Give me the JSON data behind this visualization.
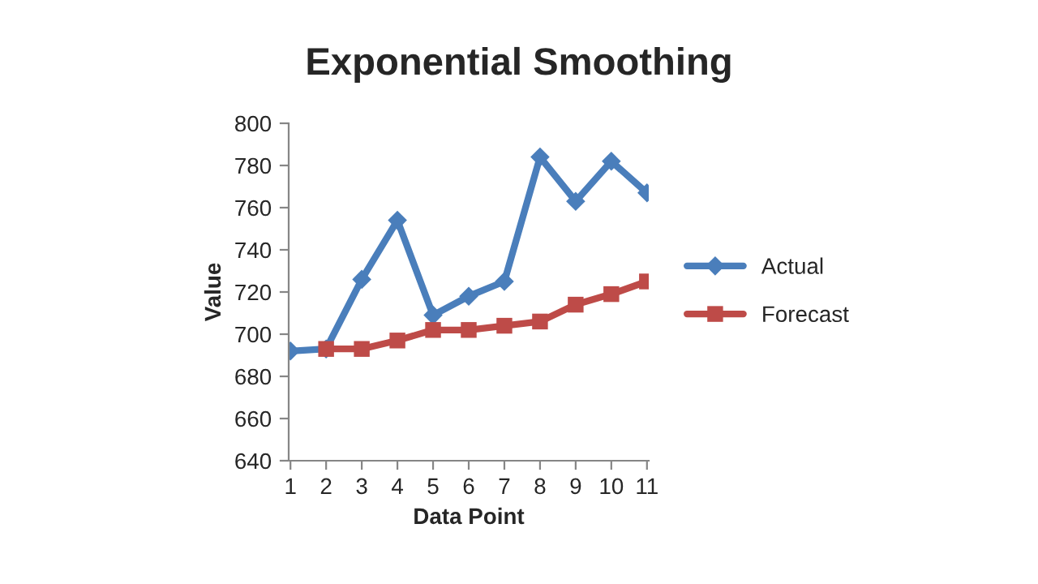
{
  "chart_data": {
    "type": "line",
    "title": "Exponential Smoothing",
    "xlabel": "Data Point",
    "ylabel": "Value",
    "categories": [
      "1",
      "2",
      "3",
      "4",
      "5",
      "6",
      "7",
      "8",
      "9",
      "10",
      "11"
    ],
    "series": [
      {
        "name": "Actual",
        "color": "#4a7ebb",
        "marker": "diamond",
        "values": [
          692,
          693,
          726,
          754,
          709,
          718,
          725,
          784,
          763,
          782,
          767
        ]
      },
      {
        "name": "Forecast",
        "color": "#be4b48",
        "marker": "square",
        "values": [
          null,
          693,
          693,
          697,
          702,
          702,
          704,
          706,
          714,
          719,
          725
        ]
      }
    ],
    "ylim": [
      640,
      800
    ],
    "yticks": [
      640,
      660,
      680,
      700,
      720,
      740,
      760,
      780,
      800
    ],
    "grid": false,
    "legend": "right",
    "line_style": "solid"
  }
}
